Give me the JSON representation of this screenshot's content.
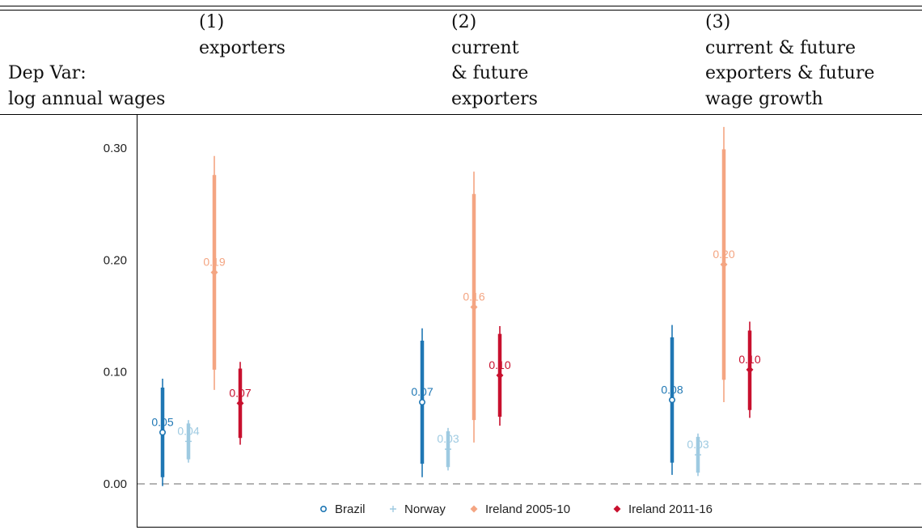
{
  "header": {
    "dep_var": [
      "Dep Var:",
      "log annual wages"
    ],
    "columns": [
      {
        "number": "(1)",
        "lines": [
          "exporters"
        ]
      },
      {
        "number": "(2)",
        "lines": [
          "current",
          "& future",
          "exporters"
        ]
      },
      {
        "number": "(3)",
        "lines": [
          "current & future",
          "exporters & future",
          "wage growth"
        ]
      }
    ]
  },
  "chart_data": {
    "type": "scatter",
    "y_ticks": [
      "0.00",
      "0.10",
      "0.20",
      "0.30"
    ],
    "ylim": [
      -0.025,
      0.325
    ],
    "reference_line": 0,
    "categories": [
      "(1)",
      "(2)",
      "(3)"
    ],
    "series": [
      {
        "name": "Brazil",
        "marker": "circle",
        "color": "#1f77b4",
        "estimates": [
          0.046,
          0.073,
          0.075
        ],
        "labels": [
          "0.05",
          "0.07",
          "0.08"
        ],
        "ci90": [
          [
            0.006,
            0.086
          ],
          [
            0.018,
            0.128
          ],
          [
            0.019,
            0.131
          ]
        ],
        "ci95": [
          [
            -0.002,
            0.094
          ],
          [
            0.006,
            0.139
          ],
          [
            0.008,
            0.142
          ]
        ]
      },
      {
        "name": "Norway",
        "marker": "plus",
        "color": "#9ecae1",
        "estimates": [
          0.038,
          0.031,
          0.026
        ],
        "labels": [
          "0.04",
          "0.03",
          "0.03"
        ],
        "ci90": [
          [
            0.022,
            0.054
          ],
          [
            0.015,
            0.047
          ],
          [
            0.01,
            0.042
          ]
        ],
        "ci95": [
          [
            0.019,
            0.057
          ],
          [
            0.012,
            0.05
          ],
          [
            0.007,
            0.045
          ]
        ]
      },
      {
        "name": "Ireland 2005-10",
        "marker": "diamond",
        "color": "#f4a582",
        "estimates": [
          0.189,
          0.158,
          0.196
        ],
        "labels": [
          "0.19",
          "0.16",
          "0.20"
        ],
        "ci90": [
          [
            0.102,
            0.276
          ],
          [
            0.057,
            0.259
          ],
          [
            0.093,
            0.299
          ]
        ],
        "ci95": [
          [
            0.084,
            0.293
          ],
          [
            0.037,
            0.279
          ],
          [
            0.073,
            0.319
          ]
        ]
      },
      {
        "name": "Ireland 2011-16",
        "marker": "diamond",
        "color": "#c8102e",
        "estimates": [
          0.072,
          0.097,
          0.102
        ],
        "labels": [
          "0.07",
          "0.10",
          "0.10"
        ],
        "ci90": [
          [
            0.041,
            0.103
          ],
          [
            0.06,
            0.134
          ],
          [
            0.066,
            0.137
          ]
        ],
        "ci95": [
          [
            0.035,
            0.109
          ],
          [
            0.052,
            0.141
          ],
          [
            0.059,
            0.145
          ]
        ]
      }
    ],
    "legend": "bottom",
    "grid": false
  }
}
